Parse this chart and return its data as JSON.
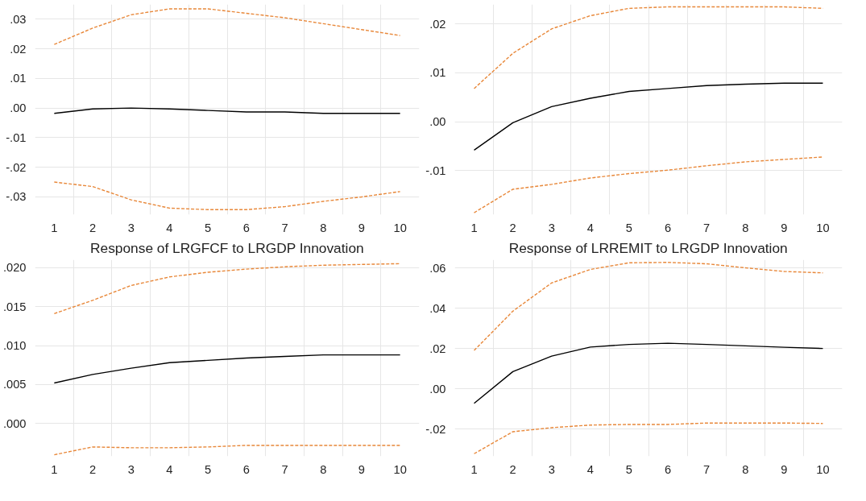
{
  "chart_data": [
    {
      "type": "line",
      "categories": [
        "1",
        "2",
        "3",
        "4",
        "5",
        "6",
        "7",
        "8",
        "9",
        "10"
      ],
      "ylim": [
        -0.036,
        0.035
      ],
      "yticks": [
        {
          "value": -0.03,
          "label": "-.03"
        },
        {
          "value": -0.02,
          "label": "-.02"
        },
        {
          "value": -0.01,
          "label": "-.01"
        },
        {
          "value": 0,
          "label": ".00"
        },
        {
          "value": 0.01,
          "label": ".01"
        },
        {
          "value": 0.02,
          "label": ".02"
        },
        {
          "value": 0.03,
          "label": ".03"
        }
      ],
      "grid": true,
      "series": [
        {
          "color": "#e8883a",
          "line_style": "dashed",
          "values": [
            0.0215,
            0.027,
            0.0315,
            0.0335,
            0.0335,
            0.032,
            0.0305,
            0.0285,
            0.0265,
            0.0245
          ]
        },
        {
          "color": "#000000",
          "line_style": "solid",
          "values": [
            -0.0018,
            -0.0003,
            0.0,
            -0.0003,
            -0.0008,
            -0.0013,
            -0.0013,
            -0.0018,
            -0.0018,
            -0.0018
          ]
        },
        {
          "color": "#e8883a",
          "line_style": "dashed",
          "values": [
            -0.025,
            -0.0265,
            -0.031,
            -0.0338,
            -0.0343,
            -0.0343,
            -0.0333,
            -0.0315,
            -0.03,
            -0.0282
          ]
        }
      ]
    },
    {
      "type": "line",
      "categories": [
        "1",
        "2",
        "3",
        "4",
        "5",
        "6",
        "7",
        "8",
        "9",
        "10"
      ],
      "ylim": [
        -0.019,
        0.024
      ],
      "yticks": [
        {
          "value": -0.01,
          "label": "-.01"
        },
        {
          "value": 0,
          "label": ".00"
        },
        {
          "value": 0.01,
          "label": ".01"
        },
        {
          "value": 0.02,
          "label": ".02"
        }
      ],
      "grid": true,
      "series": [
        {
          "color": "#e8883a",
          "line_style": "dashed",
          "values": [
            0.0068,
            0.014,
            0.019,
            0.0217,
            0.0232,
            0.0235,
            0.0235,
            0.0235,
            0.0235,
            0.0232
          ]
        },
        {
          "color": "#000000",
          "line_style": "solid",
          "values": [
            -0.0058,
            -0.0002,
            0.0031,
            0.0048,
            0.0062,
            0.0068,
            0.0074,
            0.0077,
            0.0079,
            0.0079
          ]
        },
        {
          "color": "#e8883a",
          "line_style": "dashed",
          "values": [
            -0.0186,
            -0.0138,
            -0.0128,
            -0.0115,
            -0.0106,
            -0.0099,
            -0.009,
            -0.0082,
            -0.0077,
            -0.0072
          ]
        }
      ]
    },
    {
      "type": "line",
      "title": "Response of LRGFCF to LRGDP Innovation",
      "categories": [
        "1",
        "2",
        "3",
        "4",
        "5",
        "6",
        "7",
        "8",
        "9",
        "10"
      ],
      "ylim": [
        -0.0042,
        0.021
      ],
      "yticks": [
        {
          "value": 0,
          "label": ".000"
        },
        {
          "value": 0.005,
          "label": ".005"
        },
        {
          "value": 0.01,
          "label": ".010"
        },
        {
          "value": 0.015,
          "label": ".015"
        },
        {
          "value": 0.02,
          "label": ".020"
        }
      ],
      "grid": true,
      "series": [
        {
          "color": "#e8883a",
          "line_style": "dashed",
          "values": [
            0.0141,
            0.0158,
            0.0177,
            0.0188,
            0.0194,
            0.0198,
            0.0201,
            0.0203,
            0.0204,
            0.0205
          ]
        },
        {
          "color": "#000000",
          "line_style": "solid",
          "values": [
            0.0052,
            0.0063,
            0.0071,
            0.0078,
            0.0081,
            0.0084,
            0.0086,
            0.0088,
            0.0088,
            0.0088
          ]
        },
        {
          "color": "#e8883a",
          "line_style": "dashed",
          "values": [
            -0.004,
            -0.003,
            -0.0031,
            -0.0031,
            -0.003,
            -0.0028,
            -0.0028,
            -0.0028,
            -0.0028,
            -0.0028
          ]
        }
      ]
    },
    {
      "type": "line",
      "title": "Response of LRREMIT to LRGDP Innovation",
      "categories": [
        "1",
        "2",
        "3",
        "4",
        "5",
        "6",
        "7",
        "8",
        "9",
        "10"
      ],
      "ylim": [
        -0.0335,
        0.064
      ],
      "yticks": [
        {
          "value": -0.02,
          "label": "-.02"
        },
        {
          "value": 0,
          "label": ".00"
        },
        {
          "value": 0.02,
          "label": ".02"
        },
        {
          "value": 0.04,
          "label": ".04"
        },
        {
          "value": 0.06,
          "label": ".06"
        }
      ],
      "grid": true,
      "series": [
        {
          "color": "#e8883a",
          "line_style": "dashed",
          "values": [
            0.019,
            0.0385,
            0.0525,
            0.0592,
            0.0625,
            0.0627,
            0.062,
            0.06,
            0.0582,
            0.0575
          ]
        },
        {
          "color": "#000000",
          "line_style": "solid",
          "values": [
            -0.0072,
            0.0085,
            0.0162,
            0.0207,
            0.022,
            0.0226,
            0.022,
            0.0213,
            0.0206,
            0.02
          ]
        },
        {
          "color": "#e8883a",
          "line_style": "dashed",
          "values": [
            -0.0322,
            -0.0213,
            -0.0193,
            -0.018,
            -0.0177,
            -0.0177,
            -0.017,
            -0.017,
            -0.017,
            -0.0172
          ]
        }
      ]
    }
  ]
}
